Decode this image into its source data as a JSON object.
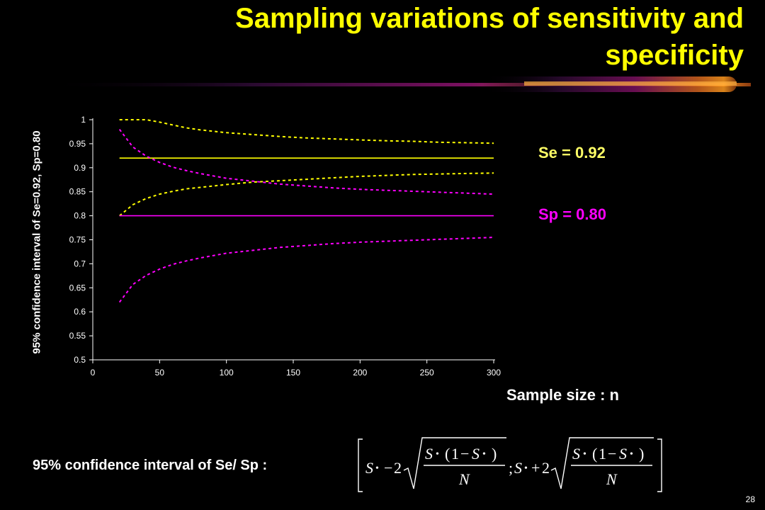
{
  "slide": {
    "title": "Sampling variations of sensitivity and specificity",
    "page_number": "28",
    "formula_label": "95% confidence interval of Se/ Sp :",
    "formula": {
      "s": "S",
      "bullet": "•",
      "minus": "−",
      "plus": "+",
      "two": "2",
      "one": "1",
      "n": "N",
      "sep": ";"
    }
  },
  "legend": {
    "se": {
      "label": "Se = 0.92",
      "color": "#ffff66"
    },
    "sp": {
      "label": "Sp = 0.80",
      "color": "#ff00ff"
    }
  },
  "chart_data": {
    "type": "line",
    "ylabel": "95% confidence interval of Se=0.92, Sp=0.80",
    "xlabel": "Sample size : n",
    "xlim": [
      0,
      300
    ],
    "ylim": [
      0.5,
      1
    ],
    "xticks": [
      0,
      50,
      100,
      150,
      200,
      250,
      300
    ],
    "yticks": [
      0.5,
      0.55,
      0.6,
      0.65,
      0.7,
      0.75,
      0.8,
      0.85,
      0.9,
      0.95,
      1
    ],
    "ytick_labels": [
      "0.5",
      "0.55",
      "0.6",
      "0.65",
      "0.7",
      "0.75",
      "0.8",
      "0.85",
      "0.9",
      "0.95",
      "1"
    ],
    "grid": false,
    "series": [
      {
        "key": "se_upper",
        "color": "#ffff00",
        "dash": true,
        "x": [
          20,
          30,
          40,
          50,
          60,
          70,
          80,
          90,
          100,
          120,
          140,
          160,
          180,
          200,
          220,
          240,
          260,
          280,
          300
        ],
        "y": [
          1.0,
          1.0,
          1.0,
          0.995,
          0.989,
          0.983,
          0.979,
          0.976,
          0.973,
          0.969,
          0.965,
          0.962,
          0.96,
          0.958,
          0.956,
          0.955,
          0.953,
          0.952,
          0.951
        ]
      },
      {
        "name": "Se = 0.92",
        "key": "se",
        "color": "#ffff00",
        "dash": false,
        "x": [
          20,
          300
        ],
        "y": [
          0.92,
          0.92
        ]
      },
      {
        "key": "se_lower",
        "color": "#ffff00",
        "dash": true,
        "x": [
          20,
          30,
          40,
          50,
          60,
          70,
          80,
          90,
          100,
          120,
          140,
          160,
          180,
          200,
          220,
          240,
          260,
          280,
          300
        ],
        "y": [
          0.8,
          0.823,
          0.836,
          0.845,
          0.851,
          0.856,
          0.859,
          0.862,
          0.865,
          0.87,
          0.873,
          0.876,
          0.879,
          0.882,
          0.884,
          0.886,
          0.887,
          0.888,
          0.889
        ]
      },
      {
        "key": "sp_upper",
        "color": "#ff00ff",
        "dash": true,
        "x": [
          20,
          30,
          40,
          50,
          60,
          70,
          80,
          90,
          100,
          120,
          140,
          160,
          180,
          200,
          220,
          240,
          260,
          280,
          300
        ],
        "y": [
          0.98,
          0.943,
          0.924,
          0.911,
          0.901,
          0.894,
          0.888,
          0.883,
          0.878,
          0.872,
          0.866,
          0.862,
          0.858,
          0.855,
          0.853,
          0.851,
          0.849,
          0.847,
          0.845
        ]
      },
      {
        "name": "Sp = 0.80",
        "key": "sp",
        "color": "#ff00ff",
        "dash": false,
        "x": [
          20,
          300
        ],
        "y": [
          0.8,
          0.8
        ]
      },
      {
        "key": "sp_lower",
        "color": "#ff00ff",
        "dash": true,
        "x": [
          20,
          30,
          40,
          50,
          60,
          70,
          80,
          90,
          100,
          120,
          140,
          160,
          180,
          200,
          220,
          240,
          260,
          280,
          300
        ],
        "y": [
          0.62,
          0.657,
          0.676,
          0.689,
          0.699,
          0.706,
          0.712,
          0.717,
          0.722,
          0.728,
          0.734,
          0.738,
          0.742,
          0.745,
          0.747,
          0.749,
          0.751,
          0.753,
          0.755
        ]
      }
    ]
  }
}
